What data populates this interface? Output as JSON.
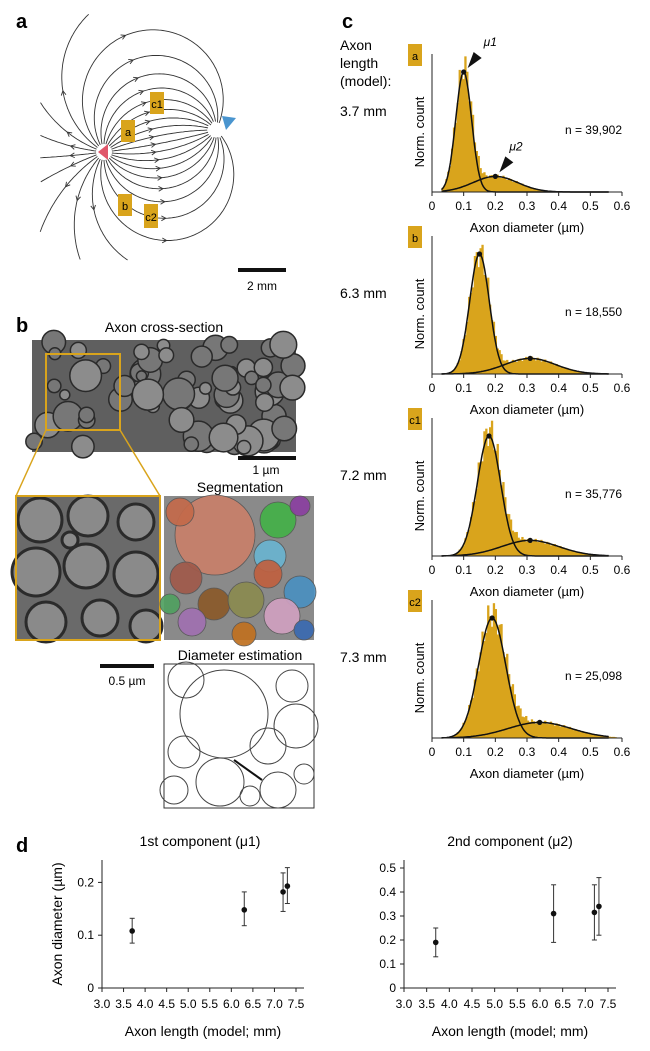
{
  "panels": {
    "a": "a",
    "b": "b",
    "c": "c",
    "d": "d"
  },
  "colors": {
    "gold": "#d9a41c",
    "red": "#e0566a",
    "blue": "#4a95cf",
    "ink": "#222222"
  },
  "panel_a": {
    "tags": [
      "c1",
      "a",
      "b",
      "c2"
    ],
    "scalebar": "2 mm"
  },
  "panel_b": {
    "title": "Axon cross-section",
    "scale_1": "1 µm",
    "segmentation": "Segmentation",
    "scale_2": "0.5 µm",
    "diameter_estimation": "Diameter estimation"
  },
  "panel_c": {
    "header": [
      "Axon",
      "length",
      "(model):"
    ],
    "mu1": "μ1",
    "mu2": "μ2"
  },
  "chart_data": [
    {
      "type": "histogram",
      "tag": "a",
      "length": "3.7 mm",
      "n": "n = 39,902",
      "mu1": 0.1,
      "mu2": 0.2,
      "xlabel": "Axon diameter (µm)",
      "ylabel": "Norm. count",
      "xlim": [
        0,
        0.6
      ],
      "xticks": [
        "0",
        "0.1",
        "0.2",
        "0.3",
        "0.4",
        "0.5",
        "0.6"
      ]
    },
    {
      "type": "histogram",
      "tag": "b",
      "length": "6.3 mm",
      "n": "n = 18,550",
      "mu1": 0.15,
      "mu2": 0.31,
      "xlabel": "Axon diameter (µm)",
      "ylabel": "Norm. count",
      "xlim": [
        0,
        0.6
      ],
      "xticks": [
        "0",
        "0.1",
        "0.2",
        "0.3",
        "0.4",
        "0.5",
        "0.6"
      ]
    },
    {
      "type": "histogram",
      "tag": "c1",
      "length": "7.2 mm",
      "n": "n = 35,776",
      "mu1": 0.18,
      "mu2": 0.31,
      "xlabel": "Axon diameter (µm)",
      "ylabel": "Norm. count",
      "xlim": [
        0,
        0.6
      ],
      "xticks": [
        "0",
        "0.1",
        "0.2",
        "0.3",
        "0.4",
        "0.5",
        "0.6"
      ]
    },
    {
      "type": "histogram",
      "tag": "c2",
      "length": "7.3 mm",
      "n": "n = 25,098",
      "mu1": 0.19,
      "mu2": 0.34,
      "xlabel": "Axon diameter (µm)",
      "ylabel": "Norm. count",
      "xlim": [
        0,
        0.6
      ],
      "xticks": [
        "0",
        "0.1",
        "0.2",
        "0.3",
        "0.4",
        "0.5",
        "0.6"
      ]
    },
    {
      "type": "scatter",
      "title": "1st component (μ1)",
      "xlabel": "Axon length (model; mm)",
      "ylabel": "Axon diameter (µm)",
      "xlim": [
        3.0,
        7.5
      ],
      "ylim": [
        0,
        0.25
      ],
      "xticks": [
        "3.0",
        "3.5",
        "4.0",
        "4.5",
        "5.0",
        "5.5",
        "6.0",
        "6.5",
        "7.0",
        "7.5"
      ],
      "yticks": [
        "0",
        "0.1",
        "0.2"
      ],
      "points": [
        {
          "x": 3.7,
          "y": 0.108,
          "lo": 0.085,
          "hi": 0.132
        },
        {
          "x": 6.3,
          "y": 0.148,
          "lo": 0.118,
          "hi": 0.182
        },
        {
          "x": 7.2,
          "y": 0.182,
          "lo": 0.145,
          "hi": 0.218
        },
        {
          "x": 7.3,
          "y": 0.193,
          "lo": 0.16,
          "hi": 0.228
        }
      ]
    },
    {
      "type": "scatter",
      "title": "2nd component (μ2)",
      "xlabel": "Axon length (model; mm)",
      "ylabel": "",
      "xlim": [
        3.0,
        7.5
      ],
      "ylim": [
        0,
        0.55
      ],
      "xticks": [
        "3.0",
        "3.5",
        "4.0",
        "4.5",
        "5.0",
        "5.5",
        "6.0",
        "6.5",
        "7.0",
        "7.5"
      ],
      "yticks": [
        "0",
        "0.1",
        "0.2",
        "0.3",
        "0.4",
        "0.5"
      ],
      "points": [
        {
          "x": 3.7,
          "y": 0.19,
          "lo": 0.13,
          "hi": 0.25
        },
        {
          "x": 6.3,
          "y": 0.31,
          "lo": 0.19,
          "hi": 0.43
        },
        {
          "x": 7.2,
          "y": 0.315,
          "lo": 0.2,
          "hi": 0.43
        },
        {
          "x": 7.3,
          "y": 0.34,
          "lo": 0.22,
          "hi": 0.46
        }
      ]
    }
  ]
}
